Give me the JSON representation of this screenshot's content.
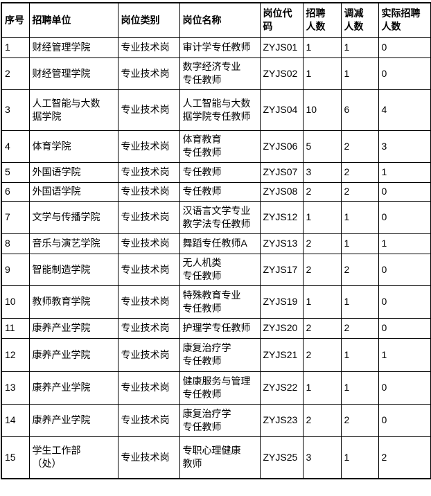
{
  "colors": {
    "border": "#000000",
    "text": "#000000",
    "background": "#ffffff"
  },
  "table": {
    "columns": [
      "序号",
      "招聘单位",
      "岗位类别",
      "岗位名称",
      "岗位代\n码",
      "招聘\n人数",
      "调减\n人数",
      "实际招聘\n人数"
    ],
    "rows": [
      [
        "1",
        "财经管理学院",
        "专业技术岗",
        "审计学专任教师",
        "ZYJS01",
        "1",
        "1",
        "0"
      ],
      [
        "2",
        "财经管理学院",
        "专业技术岗",
        "数字经济专业\n专任教师",
        "ZYJS02",
        "1",
        "1",
        "0"
      ],
      [
        "3",
        "人工智能与大数\n据学院",
        "专业技术岗",
        "人工智能与大数\n据学院专任教师",
        "ZYJS04",
        "10",
        "6",
        "4"
      ],
      [
        "4",
        "体育学院",
        "专业技术岗",
        "体育教育\n专任教师",
        "ZYJS06",
        "5",
        "2",
        "3"
      ],
      [
        "5",
        "外国语学院",
        "专业技术岗",
        "专任教师",
        "ZYJS07",
        "3",
        "2",
        "1"
      ],
      [
        "6",
        "外国语学院",
        "专业技术岗",
        "专任教师",
        "ZYJS08",
        "2",
        "2",
        "0"
      ],
      [
        "7",
        "文学与传播学院",
        "专业技术岗",
        "汉语言文学专业\n教学法专任教师",
        "ZYJS12",
        "1",
        "1",
        "0"
      ],
      [
        "8",
        "音乐与演艺学院",
        "专业技术岗",
        "舞蹈专任教师A",
        "ZYJS13",
        "2",
        "1",
        "1"
      ],
      [
        "9",
        "智能制造学院",
        "专业技术岗",
        "无人机类\n专任教师",
        "ZYJS17",
        "2",
        "2",
        "0"
      ],
      [
        "10",
        "教师教育学院",
        "专业技术岗",
        "特殊教育专业\n专任教师",
        "ZYJS19",
        "1",
        "1",
        "0"
      ],
      [
        "11",
        "康养产业学院",
        "专业技术岗",
        "护理学专任教师",
        "ZYJS20",
        "2",
        "2",
        "0"
      ],
      [
        "12",
        "康养产业学院",
        "专业技术岗",
        "康复治疗学\n专任教师",
        "ZYJS21",
        "2",
        "1",
        "1"
      ],
      [
        "13",
        "康养产业学院",
        "专业技术岗",
        "健康服务与管理\n专任教师",
        "ZYJS22",
        "1",
        "1",
        "0"
      ],
      [
        "14",
        "康养产业学院",
        "专业技术岗",
        "康复治疗学\n专任教师",
        "ZYJS23",
        "2",
        "2",
        "0"
      ],
      [
        "15",
        "学生工作部\n（处）",
        "专业技术岗",
        "专职心理健康\n教师",
        "ZYJS25",
        "3",
        "1",
        "2"
      ]
    ],
    "column_names_semantic": [
      "index",
      "recruiting-unit",
      "position-category",
      "position-name",
      "position-code",
      "recruit-count",
      "reduced-count",
      "actual-recruit-count"
    ]
  }
}
